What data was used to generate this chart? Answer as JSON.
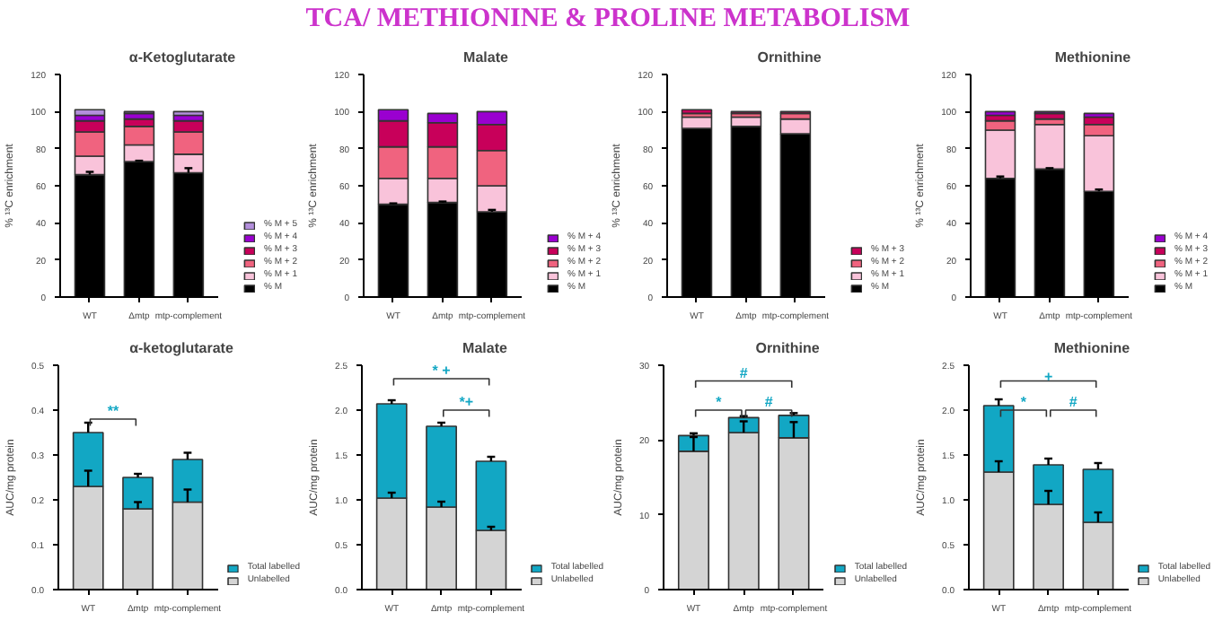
{
  "chart_data": [
    {
      "type": "other",
      "title": "TCA/ METHIONINE & PROLINE METABOLISM"
    },
    {
      "type": "bar",
      "stacked": true,
      "title": "α-Ketoglutarate",
      "ylabel": "% ¹³C enrichment",
      "categories": [
        "WT",
        "Δmtp",
        "mtp-complement"
      ],
      "ylim": [
        0,
        120
      ],
      "yticks": [
        0,
        20,
        40,
        60,
        80,
        100,
        120
      ],
      "grid": false,
      "legend": "right",
      "series": [
        {
          "name": "% M",
          "color": "#000000",
          "values": [
            66,
            73,
            67
          ],
          "errors": [
            [
              66,
              67.5
            ],
            [
              73,
              73.5
            ],
            [
              67,
              69.5
            ]
          ]
        },
        {
          "name": "% M + 1",
          "color": "#f9c3da",
          "values": [
            10,
            9,
            10
          ]
        },
        {
          "name": "% M + 2",
          "color": "#f0637f",
          "values": [
            13,
            10,
            12
          ]
        },
        {
          "name": "% M + 3",
          "color": "#c8005a",
          "values": [
            6,
            4,
            6
          ]
        },
        {
          "name": "% M + 4",
          "color": "#9a00d0",
          "values": [
            3,
            3,
            3
          ]
        },
        {
          "name": "% M + 5",
          "color": "#b38fdc",
          "values": [
            3,
            1,
            2
          ]
        }
      ]
    },
    {
      "type": "bar",
      "stacked": true,
      "title": "Malate",
      "ylabel": "% ¹³C enrichment",
      "categories": [
        "WT",
        "Δmtp",
        "mtp-complement"
      ],
      "ylim": [
        0,
        120
      ],
      "yticks": [
        0,
        20,
        40,
        60,
        80,
        100,
        120
      ],
      "grid": false,
      "legend": "right",
      "series": [
        {
          "name": "% M",
          "color": "#000000",
          "values": [
            50,
            51,
            46
          ],
          "errors": [
            [
              50,
              50.5
            ],
            [
              51,
              51.5
            ],
            [
              46,
              47
            ]
          ]
        },
        {
          "name": "% M + 1",
          "color": "#f9c3da",
          "values": [
            14,
            13,
            14
          ]
        },
        {
          "name": "% M + 2",
          "color": "#f0637f",
          "values": [
            17,
            17,
            19
          ]
        },
        {
          "name": "% M + 3",
          "color": "#c8005a",
          "values": [
            14,
            13,
            14
          ]
        },
        {
          "name": "% M + 4",
          "color": "#9a00d0",
          "values": [
            6,
            5,
            7
          ]
        }
      ]
    },
    {
      "type": "bar",
      "stacked": true,
      "title": "Ornithine",
      "ylabel": "% ¹³C enrichment",
      "categories": [
        "WT",
        "Δmtp",
        "mtp-complement"
      ],
      "ylim": [
        0,
        120
      ],
      "yticks": [
        0,
        20,
        40,
        60,
        80,
        100,
        120
      ],
      "grid": false,
      "legend": "right",
      "series": [
        {
          "name": "% M",
          "color": "#000000",
          "values": [
            91,
            92,
            88
          ]
        },
        {
          "name": "% M + 1",
          "color": "#f9c3da",
          "values": [
            6,
            5,
            8
          ]
        },
        {
          "name": "% M + 2",
          "color": "#f0637f",
          "values": [
            2,
            2,
            3
          ]
        },
        {
          "name": "% M + 3",
          "color": "#c8005a",
          "values": [
            2,
            1,
            1
          ]
        }
      ]
    },
    {
      "type": "bar",
      "stacked": true,
      "title": "Methionine",
      "ylabel": "% ¹³C enrichment",
      "categories": [
        "WT",
        "Δmtp",
        "mtp-complement"
      ],
      "ylim": [
        0,
        120
      ],
      "yticks": [
        0,
        20,
        40,
        60,
        80,
        100,
        120
      ],
      "grid": false,
      "legend": "right",
      "series": [
        {
          "name": "% M",
          "color": "#000000",
          "values": [
            64,
            69,
            57
          ],
          "errors": [
            [
              64,
              65
            ],
            [
              69,
              69.5
            ],
            [
              57,
              58
            ]
          ]
        },
        {
          "name": "% M + 1",
          "color": "#f9c3da",
          "values": [
            26,
            24,
            30
          ]
        },
        {
          "name": "% M + 2",
          "color": "#f0637f",
          "values": [
            5,
            3,
            6
          ]
        },
        {
          "name": "% M + 3",
          "color": "#c8005a",
          "values": [
            3,
            3,
            4
          ]
        },
        {
          "name": "% M + 4",
          "color": "#9a00d0",
          "values": [
            2,
            1,
            2
          ]
        }
      ]
    },
    {
      "type": "bar",
      "stacked": true,
      "title": "α-ketoglutarate",
      "ylabel": "AUC/mg protein",
      "categories": [
        "WT",
        "Δmtp",
        "mtp-complement"
      ],
      "ylim": [
        0,
        0.5
      ],
      "yticks": [
        {
          "value": 0,
          "label": "0.0"
        },
        0.1,
        0.2,
        0.3,
        0.4,
        0.5
      ],
      "grid": false,
      "legend": "right",
      "annotations": [
        "**"
      ],
      "series": [
        {
          "name": "Unlabelled",
          "color": "#d4d4d4",
          "values": [
            0.23,
            0.18,
            0.195
          ],
          "errors": [
            [
              0.23,
              0.265
            ],
            [
              0.18,
              0.195
            ],
            [
              0.195,
              0.223
            ]
          ]
        },
        {
          "name": "Total labelled",
          "color": "#12a7c4",
          "values": [
            0.12,
            0.07,
            0.095
          ],
          "errors": [
            [
              0.35,
              0.372
            ],
            [
              0.25,
              0.258
            ],
            [
              0.29,
              0.305
            ]
          ]
        }
      ]
    },
    {
      "type": "bar",
      "stacked": true,
      "title": "Malate",
      "ylabel": "AUC/mg protein",
      "categories": [
        "WT",
        "Δmtp",
        "mtp-complement"
      ],
      "ylim": [
        0,
        2.5
      ],
      "yticks": [
        {
          "value": 0,
          "label": "0.0"
        },
        0.5,
        {
          "value": 1,
          "label": "1.0"
        },
        1.5,
        {
          "value": 2,
          "label": "2.0"
        },
        2.5
      ],
      "grid": false,
      "legend": "right",
      "annotations": [
        "* +",
        "*+"
      ],
      "series": [
        {
          "name": "Unlabelled",
          "color": "#d4d4d4",
          "values": [
            1.02,
            0.92,
            0.66
          ],
          "errors": [
            [
              1.02,
              1.08
            ],
            [
              0.92,
              0.98
            ],
            [
              0.66,
              0.7
            ]
          ]
        },
        {
          "name": "Total labelled",
          "color": "#12a7c4",
          "values": [
            1.05,
            0.9,
            0.77
          ],
          "errors": [
            [
              2.07,
              2.11
            ],
            [
              1.82,
              1.86
            ],
            [
              1.43,
              1.48
            ]
          ]
        }
      ]
    },
    {
      "type": "bar",
      "stacked": true,
      "title": "Ornithine",
      "ylabel": "AUC/mg protein",
      "categories": [
        "WT",
        "Δmtp",
        "mtp-complement"
      ],
      "ylim": [
        0,
        30
      ],
      "yticks": [
        0,
        10,
        20,
        30
      ],
      "grid": false,
      "legend": "right",
      "annotations": [
        "#",
        "*",
        "#"
      ],
      "series": [
        {
          "name": "Unlabelled",
          "color": "#d4d4d4",
          "values": [
            18.5,
            21,
            20.3
          ],
          "errors": [
            [
              18.5,
              20.4
            ],
            [
              21,
              22.5
            ],
            [
              20.3,
              22.4
            ]
          ]
        },
        {
          "name": "Total labelled",
          "color": "#12a7c4",
          "values": [
            2.1,
            2.0,
            3.0
          ],
          "errors": [
            [
              20.6,
              20.9
            ],
            [
              23,
              23.2
            ],
            [
              23.3,
              23.6
            ]
          ]
        }
      ]
    },
    {
      "type": "bar",
      "stacked": true,
      "title": "Methionine",
      "ylabel": "AUC/mg protein",
      "categories": [
        "WT",
        "Δmtp",
        "mtp-complement"
      ],
      "ylim": [
        0,
        2.5
      ],
      "yticks": [
        {
          "value": 0,
          "label": "0.0"
        },
        0.5,
        {
          "value": 1,
          "label": "1.0"
        },
        1.5,
        {
          "value": 2,
          "label": "2.0"
        },
        2.5
      ],
      "grid": false,
      "legend": "right",
      "annotations": [
        "+",
        "*",
        "#"
      ],
      "series": [
        {
          "name": "Unlabelled",
          "color": "#d4d4d4",
          "values": [
            1.31,
            0.95,
            0.75
          ],
          "errors": [
            [
              1.31,
              1.43
            ],
            [
              0.95,
              1.1
            ],
            [
              0.75,
              0.86
            ]
          ]
        },
        {
          "name": "Total labelled",
          "color": "#12a7c4",
          "values": [
            0.74,
            0.44,
            0.59
          ],
          "errors": [
            [
              2.05,
              2.12
            ],
            [
              1.39,
              1.46
            ],
            [
              1.34,
              1.41
            ]
          ]
        }
      ]
    }
  ]
}
